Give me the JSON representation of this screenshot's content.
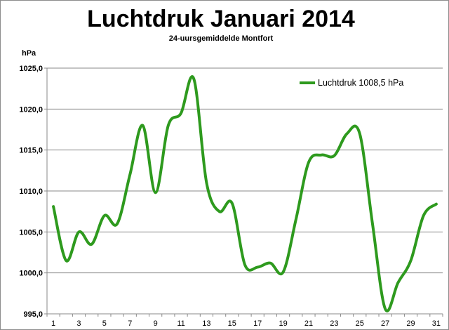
{
  "chart_data": {
    "type": "line",
    "title": "Luchtdruk Januari 2014",
    "subtitle": "24-uursgemiddelde Montfort",
    "ylabel": "hPa",
    "xlabel": "",
    "ylim": [
      995,
      1025
    ],
    "y_ticks": [
      "995,0",
      "1000,0",
      "1005,0",
      "1010,0",
      "1015,0",
      "1020,0",
      "1025,0"
    ],
    "y_tick_values": [
      995,
      1000,
      1005,
      1010,
      1015,
      1020,
      1025
    ],
    "x": [
      1,
      2,
      3,
      4,
      5,
      6,
      7,
      8,
      9,
      10,
      11,
      12,
      13,
      14,
      15,
      16,
      17,
      18,
      19,
      20,
      21,
      22,
      23,
      24,
      25,
      26,
      27,
      28,
      29,
      30,
      31
    ],
    "x_tick_labels": [
      "1",
      "3",
      "5",
      "7",
      "9",
      "11",
      "13",
      "15",
      "17",
      "19",
      "21",
      "23",
      "25",
      "27",
      "29",
      "31"
    ],
    "grid": "horizontal",
    "legend_position": "top-right",
    "series": [
      {
        "name": "Luchtdruk 1008,5 hPa",
        "color": "#2e9a1e",
        "values": [
          1008.1,
          1001.5,
          1005.0,
          1003.5,
          1007.0,
          1006.0,
          1012.0,
          1018.0,
          1009.8,
          1018.0,
          1019.5,
          1023.7,
          1011.0,
          1007.5,
          1008.5,
          1001.0,
          1000.7,
          1001.2,
          1000.1,
          1006.5,
          1013.5,
          1014.4,
          1014.3,
          1017.0,
          1017.0,
          1006.0,
          995.6,
          998.8,
          1001.5,
          1007.0,
          1008.4
        ]
      }
    ]
  }
}
